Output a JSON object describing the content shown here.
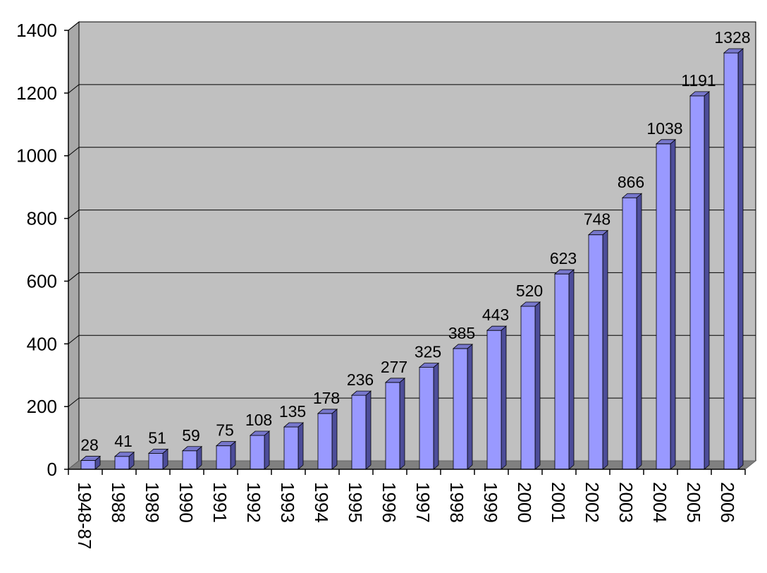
{
  "chart_data": {
    "type": "bar",
    "title": "",
    "xlabel": "",
    "ylabel": "",
    "categories": [
      "1948-87",
      "1988",
      "1989",
      "1990",
      "1991",
      "1992",
      "1993",
      "1994",
      "1995",
      "1996",
      "1997",
      "1998",
      "1999",
      "2000",
      "2001",
      "2002",
      "2003",
      "2004",
      "2005",
      "2006"
    ],
    "values": [
      28,
      41,
      51,
      59,
      75,
      108,
      135,
      178,
      236,
      277,
      325,
      385,
      443,
      520,
      623,
      748,
      866,
      1038,
      1191,
      1328
    ],
    "ylim": [
      0,
      1400
    ],
    "yticks": [
      "0",
      "200",
      "400",
      "600",
      "800",
      "1000",
      "1200",
      "1400"
    ],
    "grid": true,
    "legend": "none",
    "colors": {
      "bar_front": "#9999ff",
      "bar_side": "#4d4d99",
      "bar_top": "#7777cc",
      "plot_back": "#c0c0c0",
      "plot_floor": "#808080",
      "gridline": "#000000"
    }
  }
}
